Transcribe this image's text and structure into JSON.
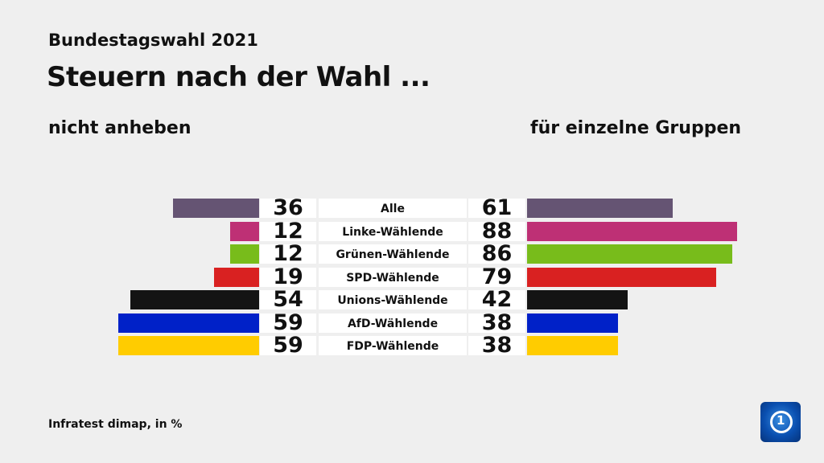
{
  "chart_data": {
    "type": "bar",
    "supertitle": "Bundestagswahl 2021",
    "title": "Steuern nach der Wahl ...",
    "left_heading": "nicht anheben",
    "right_heading": "für einzelne Gruppen",
    "source": "Infratest dimap, in %",
    "categories": [
      "Alle",
      "Linke-Wählende",
      "Grünen-Wählende",
      "SPD-Wählende",
      "Unions-Wählende",
      "AfD-Wählende",
      "FDP-Wählende"
    ],
    "colors": [
      "#655473",
      "#be3075",
      "#78bc1b",
      "#d92121",
      "#141414",
      "#0021c8",
      "#ffcc00"
    ],
    "series": [
      {
        "name": "nicht anheben",
        "values": [
          36,
          12,
          12,
          19,
          54,
          59,
          59
        ]
      },
      {
        "name": "für einzelne Gruppen",
        "values": [
          61,
          88,
          86,
          79,
          42,
          38,
          38
        ]
      }
    ],
    "unit": "%"
  },
  "logo": {
    "name": "ard-tagesschau-logo-icon",
    "text": "1"
  }
}
